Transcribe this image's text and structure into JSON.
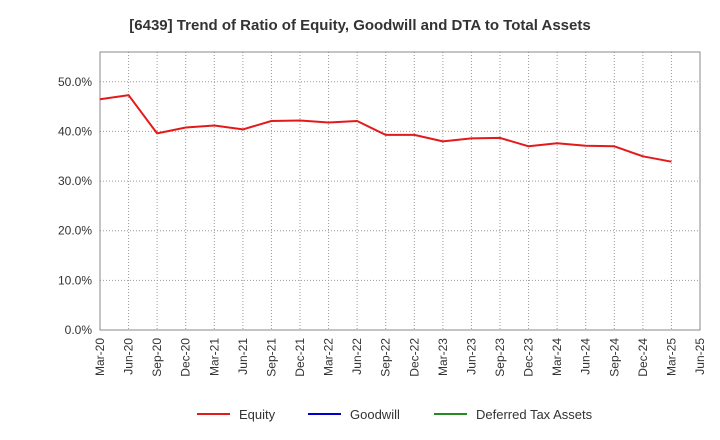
{
  "chart_data": {
    "type": "line",
    "title": "[6439]  Trend of Ratio of Equity, Goodwill and DTA to Total Assets",
    "xlabel": "",
    "ylabel": "",
    "ylim": [
      0,
      56
    ],
    "yticks": [
      0,
      10,
      20,
      30,
      40,
      50
    ],
    "ytick_labels": [
      "0.0%",
      "10.0%",
      "20.0%",
      "30.0%",
      "40.0%",
      "50.0%"
    ],
    "x_labels": [
      "Mar-20",
      "Jun-20",
      "Sep-20",
      "Dec-20",
      "Mar-21",
      "Jun-21",
      "Sep-21",
      "Dec-21",
      "Mar-22",
      "Jun-22",
      "Sep-22",
      "Dec-22",
      "Mar-23",
      "Jun-23",
      "Sep-23",
      "Dec-23",
      "Mar-24",
      "Jun-24",
      "Sep-24",
      "Dec-24",
      "Mar-25",
      "Jun-25"
    ],
    "grid": true,
    "legend_position": "bottom",
    "series": [
      {
        "name": "Equity",
        "color": "#e31a1c",
        "values": [
          46.5,
          47.3,
          39.6,
          40.8,
          41.2,
          40.4,
          42.1,
          42.2,
          41.8,
          42.1,
          39.3,
          39.3,
          38.0,
          38.6,
          38.7,
          37.0,
          37.6,
          37.1,
          37.0,
          35.0,
          33.9,
          null
        ]
      },
      {
        "name": "Goodwill",
        "color": "#0000cc",
        "values": []
      },
      {
        "name": "Deferred Tax Assets",
        "color": "#228b22",
        "values": []
      }
    ]
  }
}
